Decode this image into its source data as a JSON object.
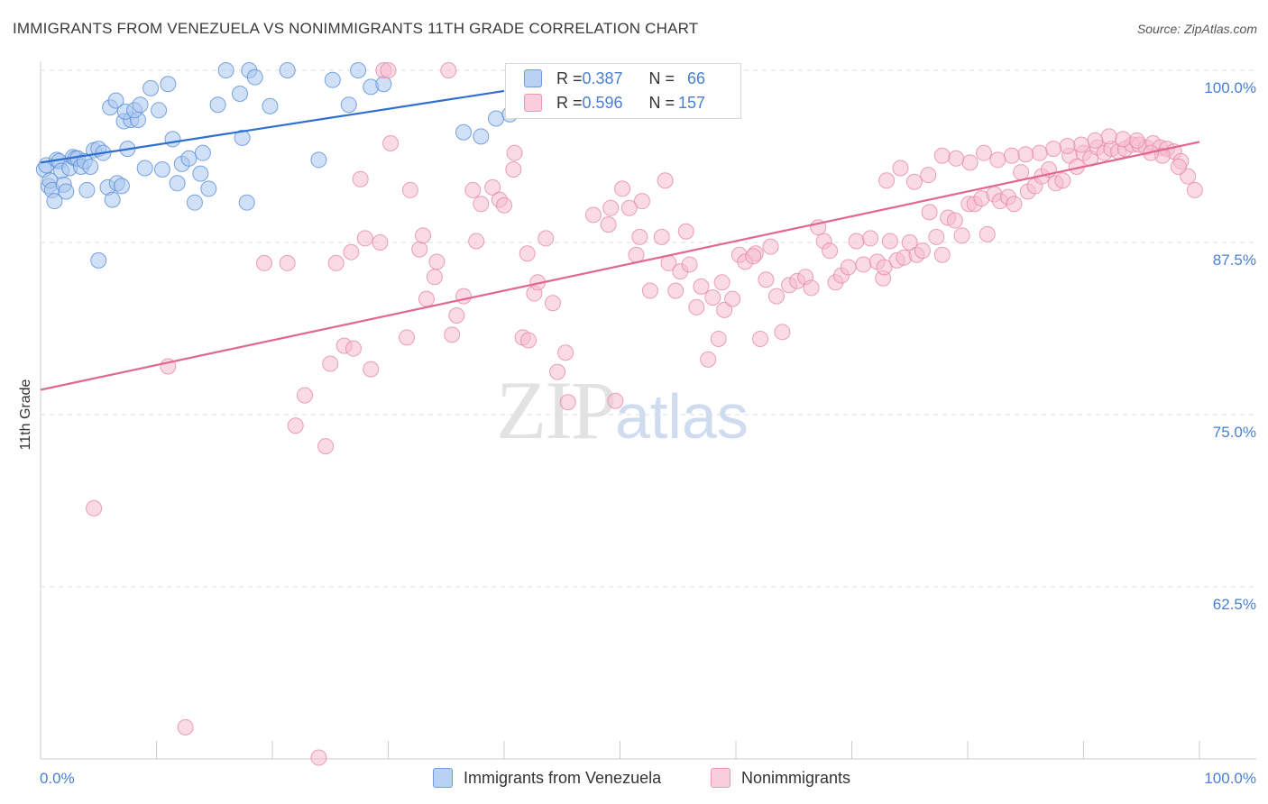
{
  "header": {
    "title": "IMMIGRANTS FROM VENEZUELA VS NONIMMIGRANTS 11TH GRADE CORRELATION CHART",
    "source": "Source: ZipAtlas.com"
  },
  "watermark": {
    "zip": "ZIP",
    "atlas": "atlas"
  },
  "legend": {
    "row1": {
      "r_label": "R = ",
      "r_value": "0.387",
      "n_label": "N = ",
      "n_value": "66"
    },
    "row2": {
      "r_label": "R = ",
      "r_value": "0.596",
      "n_label": "N = ",
      "n_value": "157"
    }
  },
  "bottom_legend": {
    "series1": "Immigrants from Venezuela",
    "series2": "Nonimmigrants"
  },
  "colors": {
    "blue_fill": "#a9c7ef",
    "blue_stroke": "#5a8fd8",
    "blue_line": "#2f6fcf",
    "pink_fill": "#f6bcd0",
    "pink_stroke": "#e58aa9",
    "pink_line": "#e2678f",
    "grid": "#dddddd",
    "axis_label": "#4a7fd4"
  },
  "chart_data": {
    "type": "scatter",
    "ylabel": "11th Grade",
    "xlim": [
      0,
      100
    ],
    "ylim": [
      50,
      100
    ],
    "y_ticks": [
      62.5,
      75.0,
      87.5,
      100.0
    ],
    "y_tick_labels": [
      "62.5%",
      "75.0%",
      "87.5%",
      "100.0%"
    ],
    "x_tick_labels": [
      "0.0%",
      "100.0%"
    ],
    "series": [
      {
        "name": "Immigrants from Venezuela",
        "R": 0.387,
        "N": 66,
        "trend": {
          "x": [
            0,
            40
          ],
          "y": [
            93.3,
            98.5
          ]
        },
        "points": [
          [
            0.3,
            92.8
          ],
          [
            0.5,
            93.1
          ],
          [
            0.7,
            91.6
          ],
          [
            0.8,
            92.0
          ],
          [
            1.0,
            91.3
          ],
          [
            1.2,
            90.5
          ],
          [
            1.4,
            93.5
          ],
          [
            1.6,
            93.4
          ],
          [
            1.8,
            92.7
          ],
          [
            2.0,
            91.7
          ],
          [
            2.2,
            91.2
          ],
          [
            2.5,
            92.9
          ],
          [
            2.8,
            93.7
          ],
          [
            3.0,
            93.6
          ],
          [
            3.2,
            93.6
          ],
          [
            3.5,
            93.0
          ],
          [
            3.8,
            93.4
          ],
          [
            4.0,
            91.3
          ],
          [
            4.3,
            93.0
          ],
          [
            4.6,
            94.2
          ],
          [
            5.0,
            94.3
          ],
          [
            5.4,
            94.0
          ],
          [
            5.8,
            91.5
          ],
          [
            6.2,
            90.6
          ],
          [
            6.6,
            91.8
          ],
          [
            7.0,
            91.6
          ],
          [
            7.5,
            94.3
          ],
          [
            7.2,
            96.3
          ],
          [
            7.8,
            96.4
          ],
          [
            8.4,
            96.4
          ],
          [
            6.0,
            97.3
          ],
          [
            6.5,
            97.8
          ],
          [
            7.3,
            97.0
          ],
          [
            8.1,
            97.1
          ],
          [
            8.6,
            97.5
          ],
          [
            9.5,
            98.7
          ],
          [
            10.2,
            97.1
          ],
          [
            11.0,
            99.0
          ],
          [
            11.4,
            95.0
          ],
          [
            12.2,
            93.2
          ],
          [
            12.8,
            93.6
          ],
          [
            13.3,
            90.4
          ],
          [
            13.8,
            92.5
          ],
          [
            14.5,
            91.4
          ],
          [
            15.3,
            97.5
          ],
          [
            16.0,
            100.0
          ],
          [
            17.2,
            98.3
          ],
          [
            18.0,
            100.0
          ],
          [
            17.4,
            95.1
          ],
          [
            17.8,
            90.4
          ],
          [
            18.5,
            99.5
          ],
          [
            19.8,
            97.4
          ],
          [
            21.3,
            100.0
          ],
          [
            25.2,
            99.3
          ],
          [
            26.6,
            97.5
          ],
          [
            27.4,
            100.0
          ],
          [
            28.5,
            98.8
          ],
          [
            29.6,
            99.0
          ],
          [
            24.0,
            93.5
          ],
          [
            9.0,
            92.9
          ],
          [
            10.5,
            92.8
          ],
          [
            11.8,
            91.8
          ],
          [
            14.0,
            94.0
          ],
          [
            38.0,
            95.2
          ],
          [
            39.3,
            96.5
          ],
          [
            40.5,
            96.8
          ],
          [
            36.5,
            95.5
          ],
          [
            5.0,
            86.2
          ]
        ]
      },
      {
        "name": "Nonimmigrants",
        "R": 0.596,
        "N": 157,
        "trend": {
          "x": [
            0,
            100
          ],
          "y": [
            76.8,
            94.8
          ]
        },
        "points": [
          [
            4.6,
            68.2
          ],
          [
            11.0,
            78.5
          ],
          [
            12.5,
            52.3
          ],
          [
            19.3,
            86.0
          ],
          [
            21.3,
            86.0
          ],
          [
            22.0,
            74.2
          ],
          [
            22.8,
            76.4
          ],
          [
            24.0,
            50.1
          ],
          [
            24.6,
            72.7
          ],
          [
            25.0,
            78.7
          ],
          [
            25.5,
            86.0
          ],
          [
            26.2,
            80.0
          ],
          [
            26.8,
            86.8
          ],
          [
            27.0,
            79.8
          ],
          [
            27.6,
            92.1
          ],
          [
            28.5,
            78.3
          ],
          [
            29.3,
            87.5
          ],
          [
            29.6,
            100.0
          ],
          [
            30.0,
            100.0
          ],
          [
            30.2,
            94.7
          ],
          [
            31.6,
            80.6
          ],
          [
            31.9,
            91.3
          ],
          [
            32.7,
            87.0
          ],
          [
            33.3,
            83.4
          ],
          [
            34.2,
            86.1
          ],
          [
            35.2,
            100.0
          ],
          [
            35.5,
            80.8
          ],
          [
            35.9,
            82.2
          ],
          [
            36.5,
            83.6
          ],
          [
            37.3,
            91.3
          ],
          [
            37.6,
            87.6
          ],
          [
            38.0,
            90.3
          ],
          [
            39.0,
            91.5
          ],
          [
            39.6,
            90.6
          ],
          [
            40.0,
            90.2
          ],
          [
            40.8,
            92.8
          ],
          [
            40.9,
            94.0
          ],
          [
            41.6,
            80.6
          ],
          [
            42.1,
            80.4
          ],
          [
            42.6,
            83.8
          ],
          [
            42.9,
            84.6
          ],
          [
            43.6,
            87.8
          ],
          [
            44.2,
            83.1
          ],
          [
            44.6,
            78.1
          ],
          [
            45.3,
            79.5
          ],
          [
            45.5,
            75.9
          ],
          [
            47.7,
            89.5
          ],
          [
            49.0,
            88.8
          ],
          [
            49.2,
            90.0
          ],
          [
            49.6,
            76.0
          ],
          [
            50.2,
            91.4
          ],
          [
            51.4,
            86.6
          ],
          [
            51.7,
            87.9
          ],
          [
            51.9,
            90.5
          ],
          [
            52.6,
            84.0
          ],
          [
            53.6,
            87.9
          ],
          [
            53.9,
            92.0
          ],
          [
            54.2,
            86.0
          ],
          [
            54.8,
            84.0
          ],
          [
            55.2,
            85.4
          ],
          [
            55.7,
            88.3
          ],
          [
            56.0,
            85.9
          ],
          [
            56.6,
            82.8
          ],
          [
            57.0,
            84.3
          ],
          [
            57.6,
            79.0
          ],
          [
            58.0,
            83.5
          ],
          [
            58.5,
            80.5
          ],
          [
            59.0,
            82.6
          ],
          [
            59.7,
            83.4
          ],
          [
            60.3,
            86.6
          ],
          [
            60.8,
            86.1
          ],
          [
            61.7,
            86.7
          ],
          [
            62.1,
            80.5
          ],
          [
            62.6,
            84.8
          ],
          [
            63.0,
            87.2
          ],
          [
            63.5,
            83.6
          ],
          [
            64.0,
            81.0
          ],
          [
            64.6,
            84.4
          ],
          [
            65.3,
            84.7
          ],
          [
            66.0,
            85.0
          ],
          [
            66.5,
            84.2
          ],
          [
            67.1,
            88.6
          ],
          [
            67.6,
            87.6
          ],
          [
            68.1,
            86.9
          ],
          [
            68.6,
            84.6
          ],
          [
            69.1,
            85.1
          ],
          [
            69.7,
            85.7
          ],
          [
            70.4,
            87.6
          ],
          [
            71.0,
            85.9
          ],
          [
            71.6,
            87.8
          ],
          [
            72.2,
            86.1
          ],
          [
            72.7,
            84.9
          ],
          [
            73.3,
            87.6
          ],
          [
            73.9,
            86.2
          ],
          [
            74.5,
            86.4
          ],
          [
            75.0,
            87.5
          ],
          [
            75.6,
            86.6
          ],
          [
            76.1,
            86.9
          ],
          [
            76.7,
            89.7
          ],
          [
            77.3,
            87.9
          ],
          [
            77.8,
            86.6
          ],
          [
            78.3,
            89.3
          ],
          [
            78.9,
            89.1
          ],
          [
            79.5,
            88.0
          ],
          [
            80.1,
            90.3
          ],
          [
            80.6,
            90.3
          ],
          [
            81.2,
            90.7
          ],
          [
            81.7,
            88.1
          ],
          [
            82.3,
            91.0
          ],
          [
            82.8,
            90.5
          ],
          [
            83.5,
            90.8
          ],
          [
            84.0,
            90.3
          ],
          [
            84.6,
            92.6
          ],
          [
            85.2,
            91.2
          ],
          [
            85.8,
            91.6
          ],
          [
            86.4,
            92.3
          ],
          [
            87.0,
            92.8
          ],
          [
            87.6,
            91.8
          ],
          [
            88.2,
            92.0
          ],
          [
            88.8,
            93.8
          ],
          [
            89.4,
            93.0
          ],
          [
            90.0,
            94.0
          ],
          [
            90.6,
            93.6
          ],
          [
            91.2,
            94.4
          ],
          [
            91.8,
            94.0
          ],
          [
            92.4,
            94.3
          ],
          [
            93.0,
            94.1
          ],
          [
            93.6,
            94.3
          ],
          [
            94.2,
            94.6
          ],
          [
            94.8,
            94.6
          ],
          [
            95.4,
            94.4
          ],
          [
            96.0,
            94.7
          ],
          [
            96.6,
            94.4
          ],
          [
            97.2,
            94.3
          ],
          [
            97.8,
            94.1
          ],
          [
            98.4,
            93.4
          ],
          [
            99.0,
            92.3
          ],
          [
            99.6,
            91.3
          ],
          [
            98.2,
            93.0
          ],
          [
            96.8,
            93.8
          ],
          [
            95.8,
            94.0
          ],
          [
            94.6,
            94.9
          ],
          [
            93.4,
            95.0
          ],
          [
            92.2,
            95.2
          ],
          [
            91.0,
            94.9
          ],
          [
            89.8,
            94.6
          ],
          [
            88.6,
            94.5
          ],
          [
            87.4,
            94.3
          ],
          [
            86.2,
            94.0
          ],
          [
            85.0,
            93.9
          ],
          [
            83.8,
            93.8
          ],
          [
            82.6,
            93.5
          ],
          [
            81.4,
            94.0
          ],
          [
            80.2,
            93.3
          ],
          [
            79.0,
            93.6
          ],
          [
            77.8,
            93.8
          ],
          [
            76.6,
            92.4
          ],
          [
            75.4,
            91.9
          ],
          [
            74.2,
            92.9
          ],
          [
            73.0,
            92.0
          ],
          [
            72.8,
            85.7
          ],
          [
            61.5,
            86.5
          ],
          [
            58.8,
            84.6
          ],
          [
            50.8,
            90.0
          ],
          [
            42.0,
            86.7
          ],
          [
            34.0,
            85.0
          ],
          [
            28.0,
            87.8
          ],
          [
            33.0,
            88.0
          ]
        ]
      }
    ]
  }
}
